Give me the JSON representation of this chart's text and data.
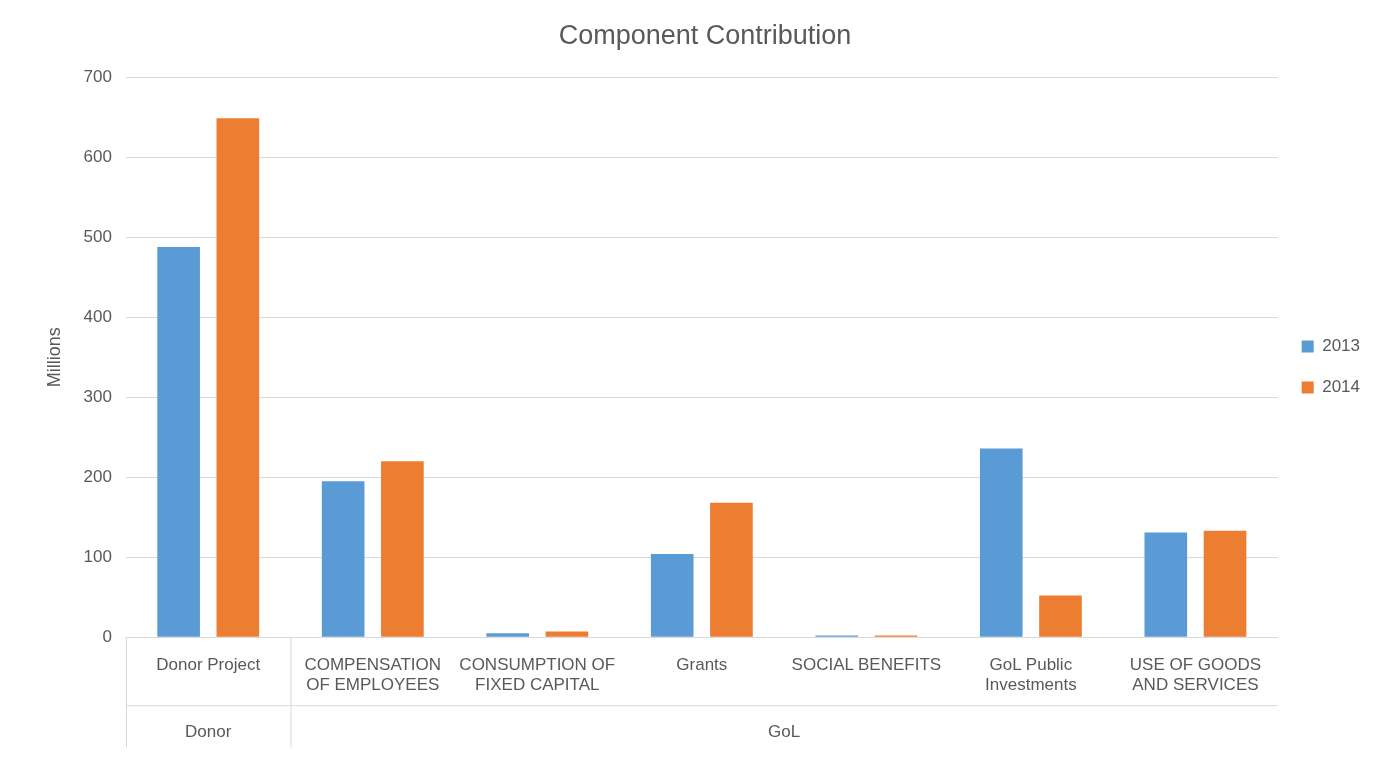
{
  "chart_data": {
    "type": "bar",
    "title": "Component Contribution",
    "ylabel": "Millions",
    "categories": [
      "Donor Project",
      "COMPENSATION OF EMPLOYEES",
      "CONSUMPTION OF FIXED CAPITAL",
      "Grants",
      "SOCIAL BENEFITS",
      "GoL Public Investments",
      "USE OF GOODS AND SERVICES"
    ],
    "series": [
      {
        "name": "2013",
        "color": "#5b9bd5",
        "values": [
          488,
          195,
          5,
          104,
          2,
          236,
          131
        ]
      },
      {
        "name": "2014",
        "color": "#ed7d31",
        "values": [
          649,
          220,
          7,
          168,
          2,
          52,
          133
        ]
      }
    ],
    "ylim": [
      0,
      700
    ],
    "yticks": [
      0,
      100,
      200,
      300,
      400,
      500,
      600,
      700
    ],
    "grid": "y",
    "legend": "right",
    "annotations": [
      "Donor",
      "GoL"
    ]
  }
}
